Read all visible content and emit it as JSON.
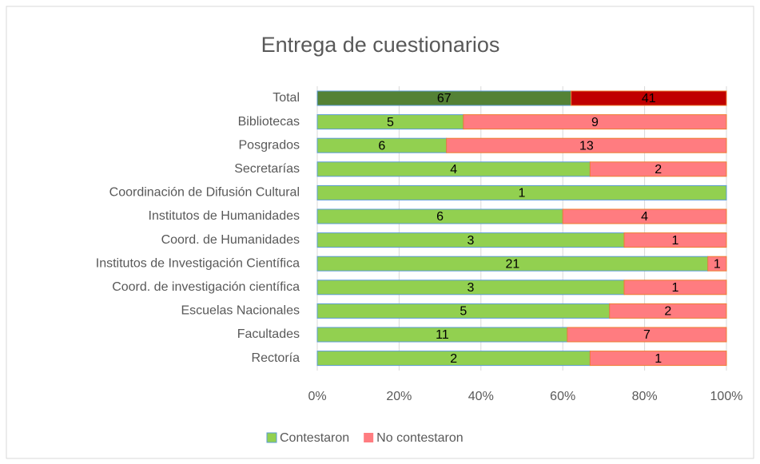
{
  "chart_data": {
    "type": "bar",
    "orientation": "horizontal",
    "stacking": "percent",
    "title": "Entrega de cuestionarios",
    "categories": [
      "Total",
      "Bibliotecas",
      "Posgrados",
      "Secretarías",
      "Coordinación de Difusión Cultural",
      "Institutos de Humanidades",
      "Coord. de Humanidades",
      "Institutos de Investigación Científica",
      "Coord. de investigación científica",
      "Escuelas Nacionales",
      "Facultades",
      "Rectoría"
    ],
    "series": [
      {
        "name": "Contestaron",
        "color": "#92d050",
        "colors": [
          "#548235",
          "#92d050",
          "#92d050",
          "#92d050",
          "#92d050",
          "#92d050",
          "#92d050",
          "#92d050",
          "#92d050",
          "#92d050",
          "#92d050",
          "#92d050"
        ],
        "values": [
          67,
          5,
          6,
          4,
          1,
          6,
          3,
          21,
          3,
          5,
          11,
          2
        ]
      },
      {
        "name": "No contestaron",
        "color": "#ff7c80",
        "colors": [
          "#c00000",
          "#ff7c80",
          "#ff7c80",
          "#ff7c80",
          "#ff7c80",
          "#ff7c80",
          "#ff7c80",
          "#ff7c80",
          "#ff7c80",
          "#ff7c80",
          "#ff7c80",
          "#ff7c80"
        ],
        "values": [
          41,
          9,
          13,
          2,
          null,
          4,
          1,
          1,
          1,
          2,
          7,
          1
        ]
      }
    ],
    "xlim": [
      0,
      100
    ],
    "xticks": [
      {
        "value": 0,
        "label": "0%"
      },
      {
        "value": 20,
        "label": "20%"
      },
      {
        "value": 40,
        "label": "40%"
      },
      {
        "value": 60,
        "label": "60%"
      },
      {
        "value": 80,
        "label": "80%"
      },
      {
        "value": 100,
        "label": "100%"
      }
    ],
    "grid": true,
    "legend": "bottom"
  }
}
